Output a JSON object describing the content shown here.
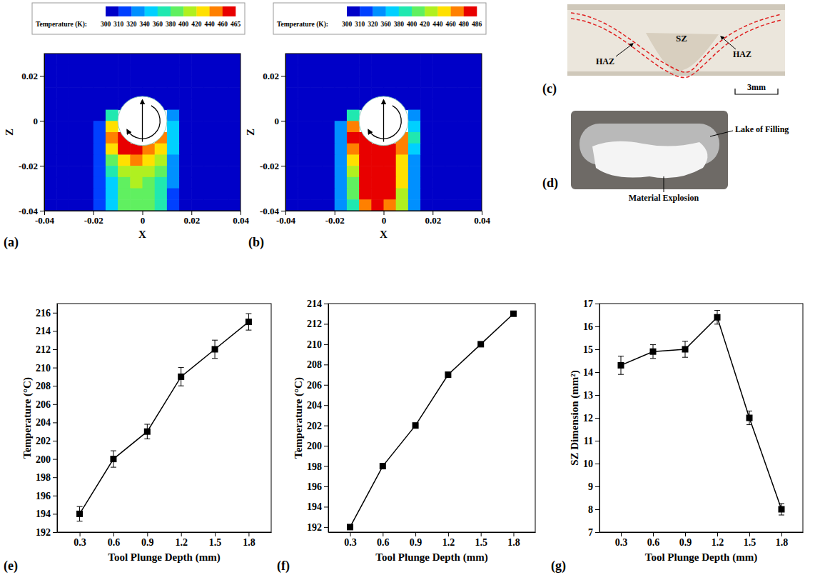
{
  "chart_data": [
    {
      "type": "heatmap",
      "panel": "(a)",
      "x_label": "X",
      "y_label": "Z",
      "x": [
        -0.0375,
        -0.0325,
        -0.0275,
        -0.0225,
        -0.0175,
        -0.0125,
        -0.0075,
        -0.0025,
        0.0025,
        0.0075,
        0.0125,
        0.0175,
        0.0225,
        0.0275,
        0.0325,
        0.0375
      ],
      "y": [
        0.0275,
        0.0225,
        0.0175,
        0.0125,
        0.0075,
        0.0025,
        -0.0025,
        -0.0075,
        -0.0125,
        -0.0175,
        -0.0225,
        -0.0275,
        -0.0325,
        -0.0375
      ],
      "values": [
        [
          300,
          300,
          300,
          300,
          300,
          300,
          300,
          300,
          300,
          300,
          300,
          300,
          300,
          300,
          300,
          300
        ],
        [
          300,
          300,
          300,
          300,
          300,
          300,
          300,
          300,
          300,
          300,
          300,
          300,
          300,
          300,
          300,
          300
        ],
        [
          300,
          300,
          300,
          300,
          300,
          300,
          300,
          300,
          300,
          300,
          300,
          300,
          300,
          300,
          300,
          300
        ],
        [
          300,
          300,
          300,
          300,
          300,
          300,
          300,
          300,
          300,
          300,
          300,
          300,
          300,
          300,
          300,
          300
        ],
        [
          300,
          300,
          300,
          300,
          300,
          300,
          300,
          null,
          null,
          300,
          300,
          300,
          300,
          300,
          300,
          300
        ],
        [
          300,
          300,
          300,
          300,
          300,
          360,
          null,
          null,
          null,
          null,
          320,
          300,
          300,
          300,
          300,
          300
        ],
        [
          300,
          300,
          300,
          300,
          310,
          420,
          null,
          null,
          null,
          null,
          340,
          300,
          300,
          300,
          300,
          300
        ],
        [
          300,
          300,
          300,
          300,
          310,
          440,
          465,
          null,
          null,
          440,
          340,
          300,
          300,
          300,
          300,
          300
        ],
        [
          300,
          300,
          300,
          300,
          310,
          420,
          460,
          460,
          450,
          420,
          340,
          300,
          300,
          300,
          300,
          300
        ],
        [
          300,
          300,
          300,
          300,
          310,
          380,
          420,
          440,
          420,
          400,
          330,
          300,
          300,
          300,
          300,
          300
        ],
        [
          300,
          300,
          300,
          300,
          310,
          360,
          400,
          410,
          400,
          380,
          320,
          300,
          300,
          300,
          300,
          300
        ],
        [
          300,
          300,
          300,
          300,
          310,
          350,
          390,
          400,
          390,
          370,
          320,
          300,
          300,
          300,
          300,
          300
        ],
        [
          300,
          300,
          300,
          300,
          310,
          340,
          380,
          390,
          390,
          360,
          310,
          300,
          300,
          300,
          300,
          300
        ],
        [
          300,
          300,
          300,
          300,
          310,
          340,
          380,
          380,
          380,
          360,
          310,
          300,
          300,
          300,
          300,
          300
        ]
      ],
      "xlim": [
        -0.04,
        0.04
      ],
      "ylim": [
        -0.04,
        0.03
      ],
      "xticks": [
        -0.04,
        -0.02,
        0,
        0.02,
        0.04
      ],
      "yticks": [
        -0.04,
        -0.02,
        0,
        0.02
      ],
      "colorbar": {
        "title": "Temperature (K):",
        "ticks": [
          300,
          310,
          320,
          340,
          360,
          380,
          400,
          420,
          440,
          460,
          465
        ],
        "colors": [
          "#0000c8",
          "#0040ff",
          "#0090ff",
          "#00d0ff",
          "#20e8b0",
          "#60f060",
          "#b0f020",
          "#ffe000",
          "#ff8000",
          "#e80000"
        ]
      },
      "tool": {
        "center": [
          0,
          0
        ],
        "radius": 0.01
      }
    },
    {
      "type": "heatmap",
      "panel": "(b)",
      "x_label": "X",
      "y_label": "Z",
      "x": [
        -0.0375,
        -0.0325,
        -0.0275,
        -0.0225,
        -0.0175,
        -0.0125,
        -0.0075,
        -0.0025,
        0.0025,
        0.0075,
        0.0125,
        0.0175,
        0.0225,
        0.0275,
        0.0325,
        0.0375
      ],
      "y": [
        0.0275,
        0.0225,
        0.0175,
        0.0125,
        0.0075,
        0.0025,
        -0.0025,
        -0.0075,
        -0.0125,
        -0.0175,
        -0.0225,
        -0.0275,
        -0.0325,
        -0.0375
      ],
      "values": [
        [
          300,
          300,
          300,
          300,
          300,
          300,
          300,
          300,
          300,
          300,
          300,
          300,
          300,
          300,
          300,
          300
        ],
        [
          300,
          300,
          300,
          300,
          300,
          300,
          300,
          300,
          300,
          300,
          300,
          300,
          300,
          300,
          300,
          300
        ],
        [
          300,
          300,
          300,
          300,
          300,
          300,
          300,
          300,
          300,
          300,
          300,
          300,
          300,
          300,
          300,
          300
        ],
        [
          300,
          300,
          300,
          300,
          300,
          300,
          300,
          300,
          300,
          300,
          300,
          300,
          300,
          300,
          300,
          300
        ],
        [
          300,
          300,
          300,
          300,
          300,
          300,
          300,
          null,
          null,
          300,
          300,
          300,
          300,
          300,
          300,
          300
        ],
        [
          300,
          300,
          300,
          300,
          300,
          380,
          null,
          null,
          null,
          null,
          320,
          300,
          300,
          300,
          300,
          300
        ],
        [
          300,
          300,
          300,
          300,
          320,
          460,
          null,
          null,
          null,
          null,
          360,
          300,
          300,
          300,
          300,
          300
        ],
        [
          300,
          300,
          300,
          300,
          320,
          480,
          486,
          null,
          null,
          470,
          380,
          300,
          300,
          300,
          300,
          300
        ],
        [
          300,
          300,
          300,
          300,
          320,
          460,
          486,
          486,
          486,
          470,
          360,
          300,
          300,
          300,
          300,
          300
        ],
        [
          300,
          300,
          300,
          300,
          320,
          440,
          486,
          486,
          480,
          450,
          340,
          300,
          300,
          300,
          300,
          300
        ],
        [
          300,
          300,
          300,
          300,
          320,
          420,
          480,
          486,
          480,
          440,
          340,
          300,
          300,
          300,
          300,
          300
        ],
        [
          300,
          300,
          300,
          300,
          320,
          400,
          480,
          486,
          480,
          440,
          330,
          300,
          300,
          300,
          300,
          300
        ],
        [
          300,
          300,
          300,
          300,
          320,
          400,
          480,
          486,
          480,
          430,
          330,
          300,
          300,
          300,
          300,
          300
        ],
        [
          300,
          300,
          300,
          300,
          320,
          390,
          470,
          486,
          470,
          420,
          320,
          300,
          300,
          300,
          300,
          300
        ]
      ],
      "xlim": [
        -0.04,
        0.04
      ],
      "ylim": [
        -0.04,
        0.03
      ],
      "xticks": [
        -0.04,
        -0.02,
        0,
        0.02,
        0.04
      ],
      "yticks": [
        -0.04,
        -0.02,
        0,
        0.02
      ],
      "colorbar": {
        "title": "Temperature (K):",
        "ticks": [
          300,
          310,
          320,
          360,
          380,
          400,
          420,
          440,
          460,
          480,
          486
        ],
        "colors": [
          "#0000c8",
          "#0040ff",
          "#0090ff",
          "#00d0ff",
          "#20e8b0",
          "#60f060",
          "#b0f020",
          "#ffe000",
          "#ff8000",
          "#e80000"
        ]
      },
      "tool": {
        "center": [
          0,
          0
        ],
        "radius": 0.01
      }
    },
    {
      "type": "line",
      "panel": "(e)",
      "x_label": "Tool Plunge Depth (mm)",
      "y_label": "Temperature (°C)",
      "x": [
        0.3,
        0.6,
        0.9,
        1.2,
        1.5,
        1.8
      ],
      "xlim": [
        0.1,
        2.0
      ],
      "xticks": [
        0.3,
        0.6,
        0.9,
        1.2,
        1.5,
        1.8
      ],
      "ylim": [
        192,
        217
      ],
      "yticks": [
        192,
        194,
        196,
        198,
        200,
        202,
        204,
        206,
        208,
        210,
        212,
        214,
        216
      ],
      "series": [
        {
          "values": [
            194,
            200,
            203,
            209,
            212,
            215
          ],
          "errors": [
            0.8,
            0.9,
            0.8,
            1.0,
            1.0,
            0.9
          ],
          "color": "#000000",
          "marker": "square",
          "line_style": "solid"
        }
      ]
    },
    {
      "type": "line",
      "panel": "(f)",
      "x_label": "Tool Plunge Depth (mm)",
      "y_label": "Temperature (°C)",
      "x": [
        0.3,
        0.6,
        0.9,
        1.2,
        1.5,
        1.8
      ],
      "xlim": [
        0.1,
        2.0
      ],
      "xticks": [
        0.3,
        0.6,
        0.9,
        1.2,
        1.5,
        1.8
      ],
      "ylim": [
        191.5,
        214
      ],
      "yticks": [
        192,
        194,
        196,
        198,
        200,
        202,
        204,
        206,
        208,
        210,
        212,
        214
      ],
      "series": [
        {
          "values": [
            192,
            198,
            202,
            207,
            210,
            213
          ],
          "color": "#000000",
          "marker": "square",
          "line_style": "solid"
        }
      ]
    },
    {
      "type": "line",
      "panel": "(g)",
      "x_label": "Tool Plunge Depth (mm)",
      "y_label": "SZ Dimension (mm²)",
      "x": [
        0.3,
        0.6,
        0.9,
        1.2,
        1.5,
        1.8
      ],
      "xlim": [
        0.1,
        2.0
      ],
      "xticks": [
        0.3,
        0.6,
        0.9,
        1.2,
        1.5,
        1.8
      ],
      "ylim": [
        7,
        17
      ],
      "yticks": [
        7,
        8,
        9,
        10,
        11,
        12,
        13,
        14,
        15,
        16,
        17
      ],
      "series": [
        {
          "values": [
            14.3,
            14.9,
            15.0,
            16.4,
            12.0,
            8.0
          ],
          "errors": [
            0.4,
            0.3,
            0.35,
            0.3,
            0.3,
            0.25
          ],
          "color": "#000000",
          "marker": "square",
          "line_style": "solid"
        }
      ]
    }
  ],
  "photos": [
    {
      "panel": "(c)",
      "labels": [
        "SZ",
        "HAZ",
        "HAZ"
      ],
      "scale_bar": "3mm"
    },
    {
      "panel": "(d)",
      "labels": [
        "Lake of Filling",
        "Material Explosion"
      ]
    }
  ]
}
